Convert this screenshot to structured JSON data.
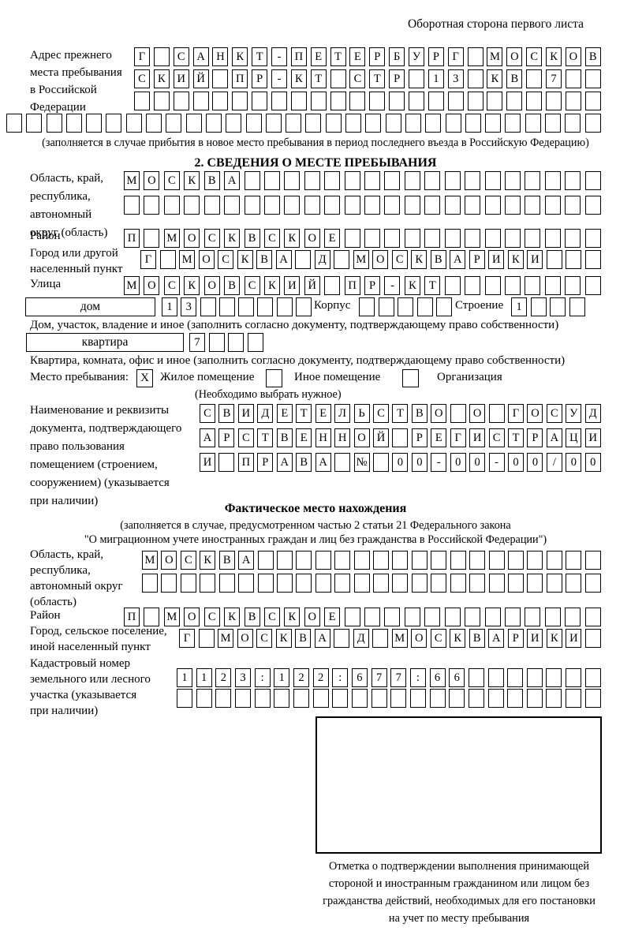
{
  "page_header": "Оборотная сторона первого листа",
  "prev_address": {
    "label_lines": [
      "Адрес прежнего",
      "места пребывания",
      "в Российской",
      "Федерации"
    ],
    "rows": [
      {
        "text": "Г САНКТ-ПЕТЕРБУРГ МОСКОВ",
        "cells": 24
      },
      {
        "text": "СКИЙ ПР-КТ СТР 13 КВ 7",
        "cells": 24
      },
      {
        "text": "",
        "cells": 24
      },
      {
        "text": "",
        "cells": 30
      }
    ],
    "note": "(заполняется в случае прибытия в новое место пребывания в период последнего въезда в Российскую Федерацию)"
  },
  "section2": {
    "title": "2. СВЕДЕНИЯ О МЕСТЕ ПРЕБЫВАНИЯ",
    "region": {
      "label_lines": [
        "Область, край,",
        "республика,",
        "автономный",
        "округ (область)"
      ],
      "rows": [
        {
          "text": "МОСКВА",
          "cells": 24
        },
        {
          "text": "",
          "cells": 24
        }
      ]
    },
    "district": {
      "label": "Район",
      "row": {
        "text": "П МОСКВСКОЕ",
        "cells": 24
      }
    },
    "city": {
      "label_lines": [
        "Город или другой",
        "населенный пункт"
      ],
      "row": {
        "text": "Г МОСКВА Д МОСКВАРИКИ",
        "cells": 24
      }
    },
    "street": {
      "label": "Улица",
      "row": {
        "text": "МОСКОВСКИЙ ПР-КТ",
        "cells": 24
      }
    },
    "house": {
      "box_label": "дом",
      "house_row": {
        "text": "13",
        "cells": 8
      },
      "korpus_label": "Корпус",
      "korpus_row": {
        "text": "",
        "cells": 5
      },
      "stroenie_label": "Строение",
      "stroenie_row": {
        "text": "1",
        "cells": 4
      }
    },
    "house_note": "Дом, участок, владение и иное (заполнить согласно документу, подтверждающему право собственности)",
    "apartment": {
      "box_label": "квартира",
      "row": {
        "text": "7",
        "cells": 4
      }
    },
    "apartment_note": "Квартира, комната, офис и иное (заполнить согласно документу, подтверждающему право собственности)",
    "stay_type": {
      "label": "Место пребывания:",
      "options": [
        {
          "label": "Жилое помещение",
          "mark": "X"
        },
        {
          "label": "Иное помещение",
          "mark": ""
        },
        {
          "label": "Организация",
          "mark": ""
        }
      ],
      "note": "(Необходимо выбрать нужное)"
    },
    "doc": {
      "label_lines": [
        "Наименование и реквизиты",
        "документа, подтверждающего",
        "право пользования",
        "помещением (строением,",
        "сооружением) (указывается",
        "при наличии)"
      ],
      "rows": [
        {
          "text": "СВИДЕТЕЛЬСТВО О ГОСУД",
          "cells": 21
        },
        {
          "text": "АРСТВЕННОЙ РЕГИСТРАЦИ",
          "cells": 21
        },
        {
          "text": "И ПРАВА № 00-00-00/000",
          "cells": 21
        }
      ]
    }
  },
  "actual_location": {
    "title": "Фактическое место нахождения",
    "note_lines": [
      "(заполняется в случае, предусмотренном частью 2 статьи 21 Федерального закона",
      "\"О миграционном учете иностранных граждан и лиц без гражданства в Российской Федерации\")"
    ],
    "region": {
      "label_lines": [
        "Область, край,",
        "республика,",
        "автономный округ",
        "(область)"
      ],
      "rows": [
        {
          "text": "МОСКВА",
          "cells": 24
        },
        {
          "text": "",
          "cells": 24
        }
      ]
    },
    "district": {
      "label": "Район",
      "row": {
        "text": "П МОСКВСКОЕ",
        "cells": 24
      }
    },
    "city": {
      "label_lines": [
        "Город, сельское поселение,",
        "иной населенный пункт"
      ],
      "row": {
        "text": "Г МОСКВА Д МОСКВАРИКИ",
        "cells": 22
      }
    },
    "cadastre": {
      "label_lines": [
        "Кадастровый номер",
        "земельного или лесного",
        "участка (указывается",
        "при наличии)"
      ],
      "rows": [
        {
          "text": "1123:122:677:66",
          "cells": 22
        },
        {
          "text": "",
          "cells": 22
        }
      ]
    },
    "stamp_caption_lines": [
      "Отметка о подтверждении выполнения принимающей",
      "стороной и иностранным гражданином или лицом без",
      "гражданства действий, необходимых для его постановки",
      "на учет по месту пребывания"
    ]
  }
}
